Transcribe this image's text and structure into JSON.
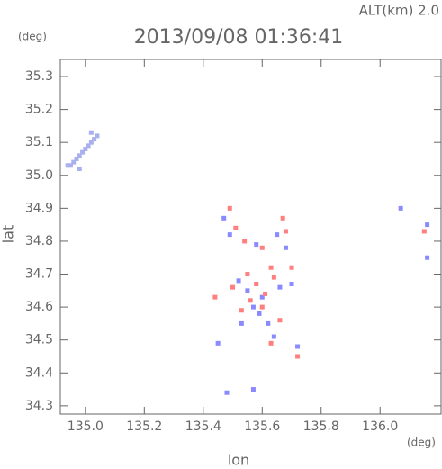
{
  "chart_data": {
    "type": "scatter",
    "title": "2013/09/08 01:36:41",
    "subtitle": "ALT(km) 2.0",
    "x_label": "lon",
    "y_label": "lat",
    "x_unit": "(deg)",
    "y_unit": "(deg)",
    "xlim": [
      134.915,
      136.207
    ],
    "ylim": [
      34.275,
      35.352
    ],
    "xticks": [
      {
        "value": 135,
        "label": "135.0"
      },
      135.2,
      135.4,
      135.6,
      135.8,
      {
        "value": 136,
        "label": "136.0"
      }
    ],
    "yticks": [
      34.3,
      34.4,
      34.5,
      34.6,
      34.7,
      34.8,
      34.9,
      {
        "value": 35,
        "label": "35.0"
      },
      35.1,
      35.2,
      35.3
    ],
    "series": [
      {
        "color": "#aab0ee",
        "x": [
          134.95,
          134.97,
          134.99,
          135.01,
          135.03,
          134.96,
          134.98,
          135.0,
          135.02,
          134.94,
          134.98,
          135.04,
          135.02
        ],
        "values": [
          35.03,
          35.05,
          35.07,
          35.09,
          35.11,
          35.04,
          35.06,
          35.08,
          35.1,
          35.03,
          35.02,
          35.12,
          35.13
        ]
      },
      {
        "color": "#8a8aff",
        "x": [
          135.47,
          135.49,
          135.58,
          135.65,
          135.68,
          135.52,
          135.55,
          135.6,
          135.66,
          135.7,
          135.57,
          135.62,
          135.64,
          135.72,
          135.45,
          135.48,
          135.57,
          136.07,
          136.16,
          136.16,
          135.59,
          135.53
        ],
        "values": [
          34.87,
          34.82,
          34.79,
          34.82,
          34.78,
          34.68,
          34.65,
          34.63,
          34.66,
          34.67,
          34.6,
          34.55,
          34.51,
          34.48,
          34.49,
          34.34,
          34.35,
          34.9,
          34.85,
          34.75,
          34.58,
          34.55
        ]
      },
      {
        "color": "#ff7f7f",
        "x": [
          135.49,
          135.51,
          135.54,
          135.6,
          135.67,
          135.68,
          135.63,
          135.55,
          135.5,
          135.58,
          135.61,
          135.64,
          135.56,
          135.53,
          135.6,
          135.66,
          135.72,
          135.44,
          135.7,
          136.15,
          135.63
        ],
        "values": [
          34.9,
          34.84,
          34.8,
          34.78,
          34.87,
          34.83,
          34.72,
          34.7,
          34.66,
          34.67,
          34.64,
          34.69,
          34.62,
          34.59,
          34.6,
          34.56,
          34.45,
          34.63,
          34.72,
          34.83,
          34.49
        ]
      }
    ]
  }
}
